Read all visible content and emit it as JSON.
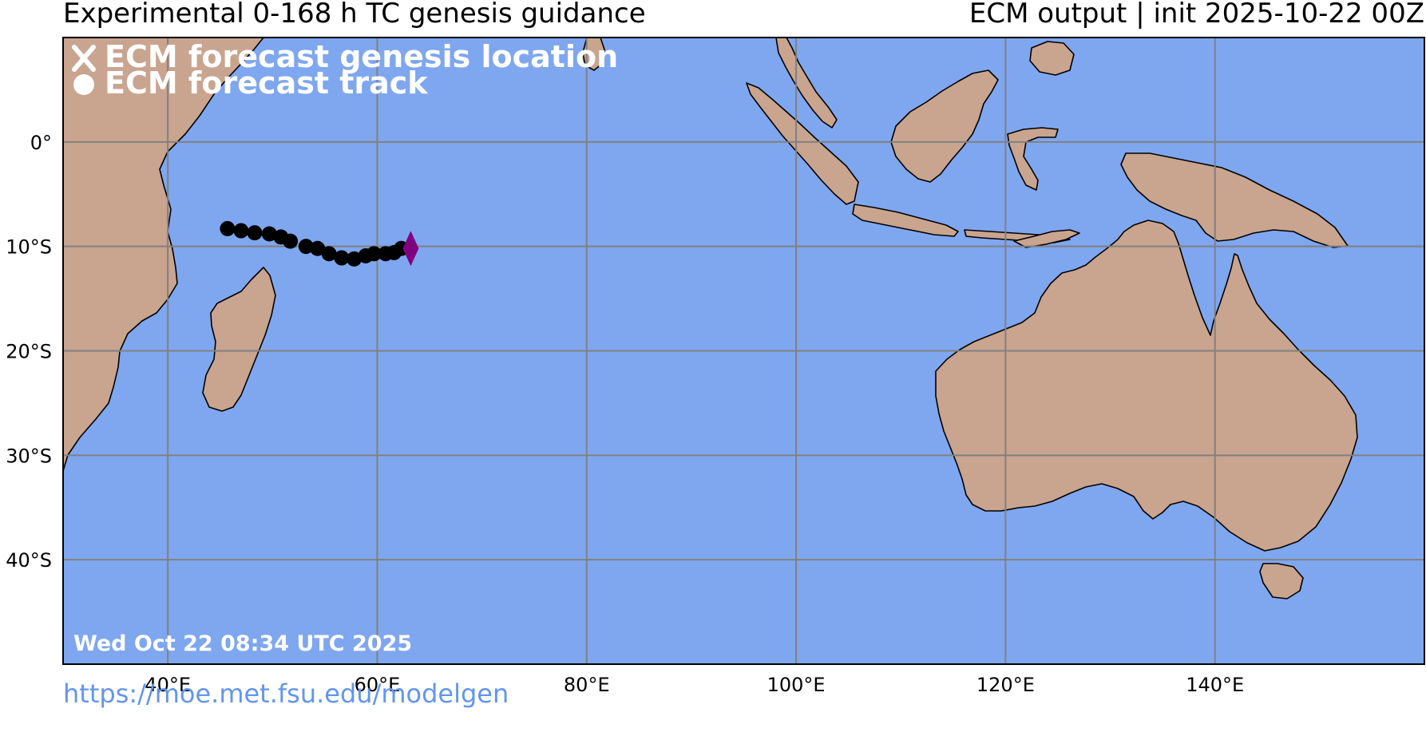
{
  "header": {
    "title_left": "Experimental 0-168 h TC genesis guidance",
    "title_right": "ECM output | init 2025-10-22 00Z"
  },
  "legend": {
    "genesis_label": "ECM forecast genesis location",
    "track_label": "ECM forecast track",
    "genesis_icon": "x-mark-icon",
    "track_icon": "dot-icon"
  },
  "timestamp": "Wed Oct 22 08:34 UTC 2025",
  "footer": {
    "url": "https://moe.met.fsu.edu/modelgen"
  },
  "colors": {
    "ocean": "#7fa7ef",
    "land": "#c9a48f",
    "grid": "#808080",
    "track": "#000000",
    "genesis_marker": "#800080",
    "lakes": "#6a93e0"
  },
  "map_extent": {
    "lon": [
      30,
      160
    ],
    "lat": [
      -50,
      10
    ]
  },
  "grid": {
    "lon_ticks": [
      {
        "value": 40,
        "label": "40°E"
      },
      {
        "value": 60,
        "label": "60°E"
      },
      {
        "value": 80,
        "label": "80°E"
      },
      {
        "value": 100,
        "label": "100°E"
      },
      {
        "value": 120,
        "label": "120°E"
      },
      {
        "value": 140,
        "label": "140°E"
      }
    ],
    "lat_ticks": [
      {
        "value": 0,
        "label": "0°"
      },
      {
        "value": -10,
        "label": "10°S"
      },
      {
        "value": -20,
        "label": "20°S"
      },
      {
        "value": -30,
        "label": "30°S"
      },
      {
        "value": -40,
        "label": "40°S"
      }
    ]
  },
  "genesis_location": {
    "lon": 63.2,
    "lat": -10.2
  },
  "track": [
    {
      "lon": 45.7,
      "lat": -8.3
    },
    {
      "lon": 47.0,
      "lat": -8.5
    },
    {
      "lon": 48.3,
      "lat": -8.7
    },
    {
      "lon": 49.7,
      "lat": -8.8
    },
    {
      "lon": 50.8,
      "lat": -9.1
    },
    {
      "lon": 51.7,
      "lat": -9.5
    },
    {
      "lon": 53.2,
      "lat": -10.0
    },
    {
      "lon": 54.3,
      "lat": -10.2
    },
    {
      "lon": 55.4,
      "lat": -10.7
    },
    {
      "lon": 56.6,
      "lat": -11.1
    },
    {
      "lon": 57.8,
      "lat": -11.2
    },
    {
      "lon": 58.9,
      "lat": -10.9
    },
    {
      "lon": 59.7,
      "lat": -10.7
    },
    {
      "lon": 60.8,
      "lat": -10.7
    },
    {
      "lon": 61.6,
      "lat": -10.6
    },
    {
      "lon": 62.3,
      "lat": -10.2
    }
  ]
}
